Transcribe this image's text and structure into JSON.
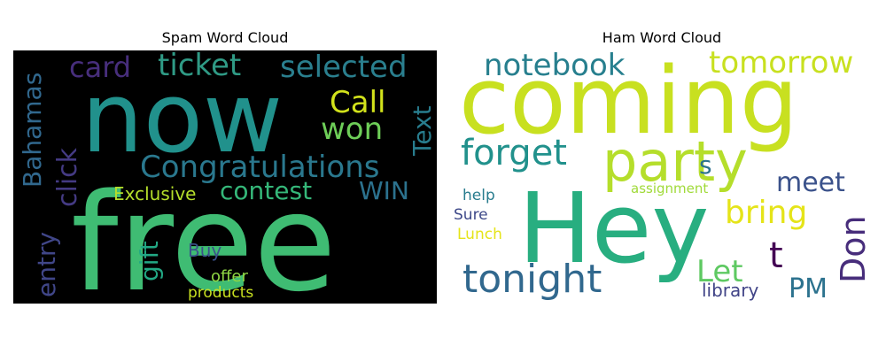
{
  "chart_data": [
    {
      "type": "wordcloud",
      "title": "Spam Word Cloud",
      "background": "#000000",
      "colormap": "viridis",
      "words": [
        {
          "text": "free",
          "color": "#3fbc73"
        },
        {
          "text": "now",
          "color": "#21918c"
        },
        {
          "text": "Congratulations",
          "color": "#2a788e"
        },
        {
          "text": "ticket",
          "color": "#2f9a85"
        },
        {
          "text": "selected",
          "color": "#2a7f8e"
        },
        {
          "text": "card",
          "color": "#472e7c"
        },
        {
          "text": "Call",
          "color": "#d2e21b"
        },
        {
          "text": "won",
          "color": "#6ece58"
        },
        {
          "text": "Text",
          "color": "#287d8e"
        },
        {
          "text": "Bahamas",
          "color": "#31688e"
        },
        {
          "text": "click",
          "color": "#443a83"
        },
        {
          "text": "contest",
          "color": "#35b779"
        },
        {
          "text": "WIN",
          "color": "#2c728e"
        },
        {
          "text": "Exclusive",
          "color": "#b5de2b"
        },
        {
          "text": "entry",
          "color": "#404688"
        },
        {
          "text": "gift",
          "color": "#22a884"
        },
        {
          "text": "Buy",
          "color": "#3b528b"
        },
        {
          "text": "offer",
          "color": "#8fd744"
        },
        {
          "text": "products",
          "color": "#c8e020"
        }
      ]
    },
    {
      "type": "wordcloud",
      "title": "Ham Word Cloud",
      "background": "#ffffff",
      "colormap": "viridis",
      "words": [
        {
          "text": "coming",
          "color": "#c8e020"
        },
        {
          "text": "Hey",
          "color": "#28ae80"
        },
        {
          "text": "party",
          "color": "#b5de2b"
        },
        {
          "text": "notebook",
          "color": "#277f8e"
        },
        {
          "text": "tomorrow",
          "color": "#c8e020"
        },
        {
          "text": "forget",
          "color": "#21918c"
        },
        {
          "text": "s",
          "color": "#2c728e"
        },
        {
          "text": "meet",
          "color": "#3b528b"
        },
        {
          "text": "bring",
          "color": "#e5e419"
        },
        {
          "text": "t",
          "color": "#440154"
        },
        {
          "text": "Don",
          "color": "#472d7b"
        },
        {
          "text": "tonight",
          "color": "#31688e"
        },
        {
          "text": "Let",
          "color": "#5ec962"
        },
        {
          "text": "PM",
          "color": "#2c728e"
        },
        {
          "text": "library",
          "color": "#414487"
        },
        {
          "text": "help",
          "color": "#287c8e"
        },
        {
          "text": "Sure",
          "color": "#3e4989"
        },
        {
          "text": "Lunch",
          "color": "#e5e419"
        },
        {
          "text": "assignment",
          "color": "#a0da39"
        }
      ]
    }
  ]
}
